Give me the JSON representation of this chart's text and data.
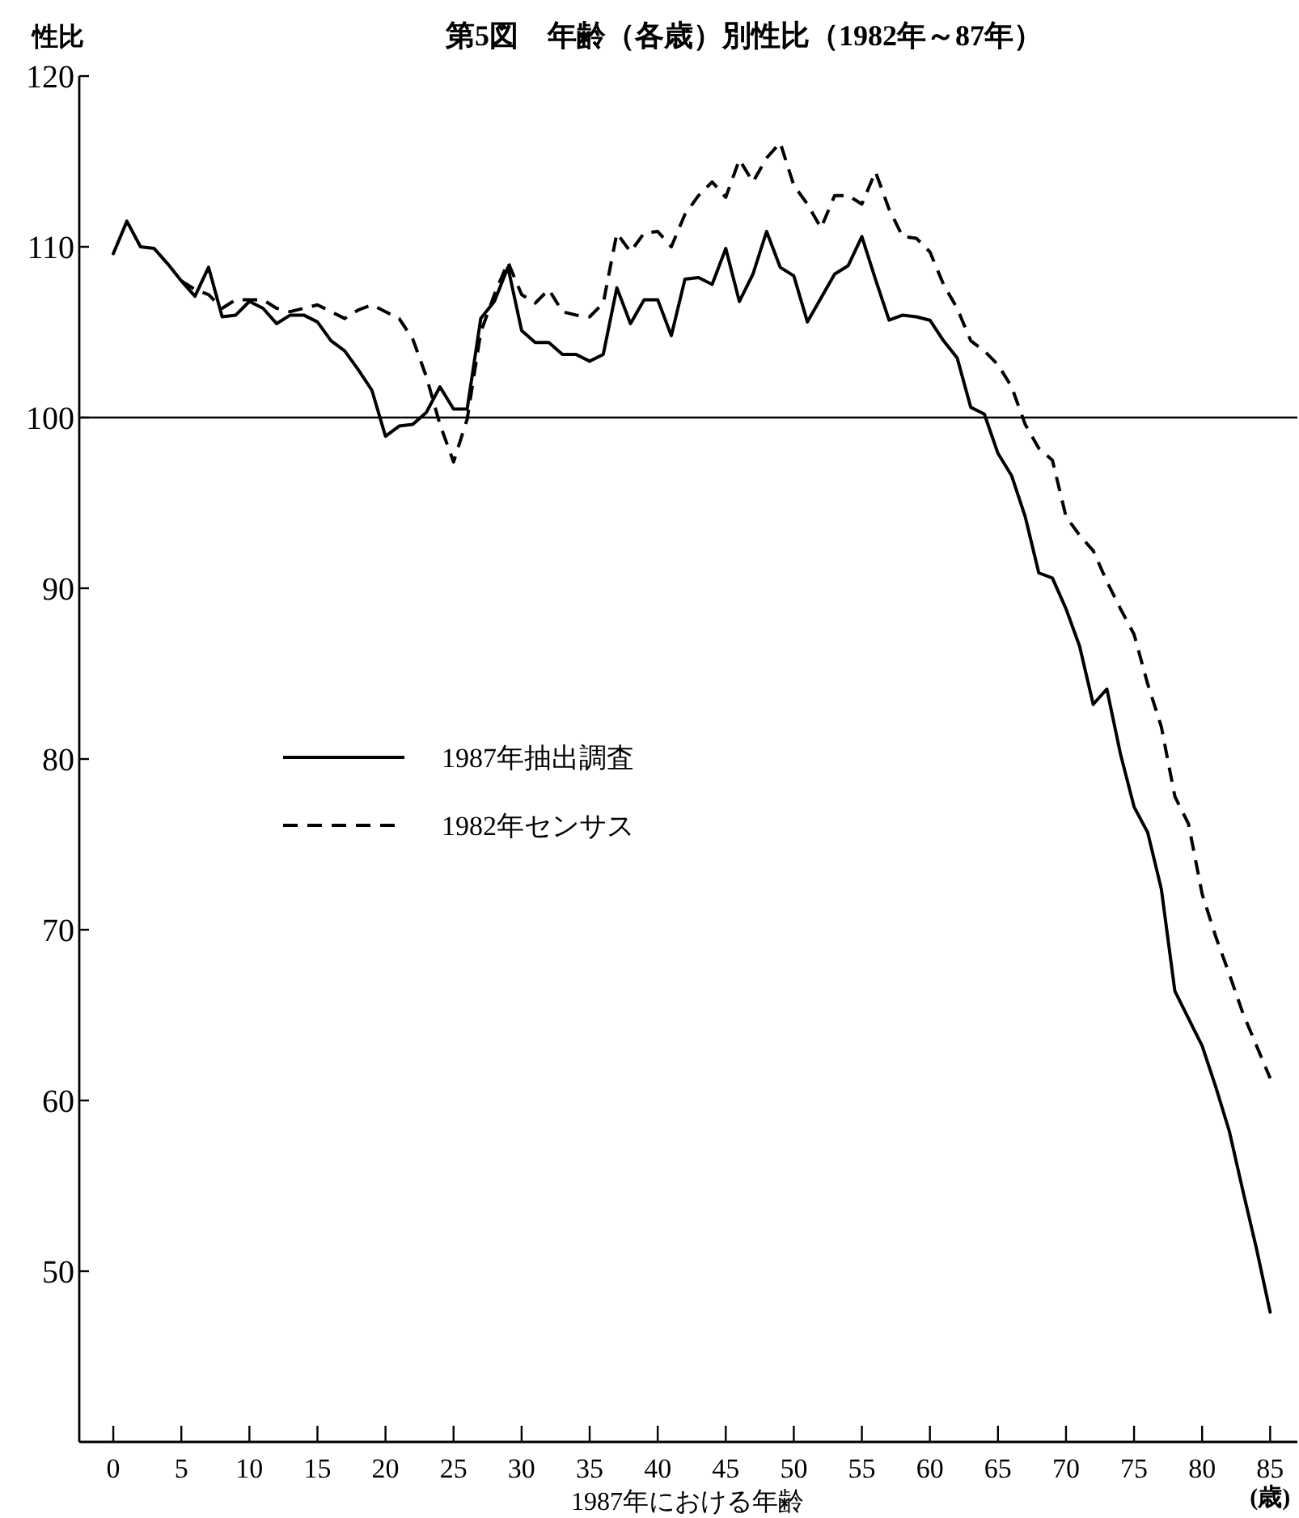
{
  "chart_data": {
    "type": "line",
    "title": "第5図　年齢（各歳）別性比（1982年～87年）",
    "ylabel": "性比",
    "xlabel": "1987年における年齢",
    "annotations": [
      "(歳)"
    ],
    "x": [
      0,
      1,
      2,
      3,
      4,
      5,
      6,
      7,
      8,
      9,
      10,
      11,
      12,
      13,
      14,
      15,
      16,
      17,
      18,
      19,
      20,
      21,
      22,
      23,
      24,
      25,
      26,
      27,
      28,
      29,
      30,
      31,
      32,
      33,
      34,
      35,
      36,
      37,
      38,
      39,
      40,
      41,
      42,
      43,
      44,
      45,
      46,
      47,
      48,
      49,
      50,
      51,
      52,
      53,
      54,
      55,
      56,
      57,
      58,
      59,
      60,
      61,
      62,
      63,
      64,
      65,
      66,
      67,
      68,
      69,
      70,
      71,
      72,
      73,
      74,
      75,
      76,
      77,
      78,
      79,
      80,
      81,
      82,
      83,
      84,
      85
    ],
    "series": [
      {
        "name": "1987年抽出調査",
        "color": "#000000",
        "line_style": "solid",
        "values": [
          109.6,
          111.5,
          110.0,
          109.9,
          109.0,
          108.0,
          107.1,
          108.8,
          105.9,
          106.0,
          106.8,
          106.4,
          105.5,
          106.0,
          106.0,
          105.6,
          104.5,
          103.9,
          102.8,
          101.6,
          98.9,
          99.5,
          99.6,
          100.3,
          101.8,
          100.5,
          100.5,
          105.8,
          106.8,
          108.8,
          105.1,
          104.4,
          104.4,
          103.7,
          103.7,
          103.3,
          103.7,
          107.6,
          105.5,
          106.9,
          106.9,
          104.8,
          108.1,
          108.2,
          107.8,
          109.9,
          106.8,
          108.4,
          110.9,
          108.8,
          108.3,
          105.6,
          107.0,
          108.4,
          108.9,
          110.6,
          108.1,
          105.7,
          106.0,
          105.9,
          105.7,
          104.5,
          103.5,
          100.6,
          100.2,
          97.9,
          96.6,
          94.2,
          90.9,
          90.6,
          88.8,
          86.6,
          83.2,
          84.1,
          80.3,
          77.2,
          75.7,
          72.4,
          66.4,
          64.8,
          63.2,
          60.8,
          58.2,
          54.7,
          51.3,
          47.6
        ]
      },
      {
        "name": "1982年センサス",
        "color": "#000000",
        "line_style": "dashed",
        "values": [
          null,
          null,
          null,
          null,
          null,
          108.0,
          107.5,
          107.2,
          106.4,
          106.9,
          106.9,
          106.9,
          106.4,
          106.2,
          106.4,
          106.6,
          106.2,
          105.8,
          106.3,
          106.6,
          106.2,
          105.8,
          104.6,
          102.4,
          99.6,
          97.4,
          99.9,
          105.0,
          107.2,
          109.1,
          107.2,
          106.7,
          107.5,
          106.2,
          106.0,
          105.9,
          106.7,
          110.8,
          109.7,
          110.8,
          110.9,
          110.0,
          111.9,
          113.0,
          113.8,
          112.9,
          115.1,
          113.8,
          115.2,
          116.1,
          113.6,
          112.5,
          111.1,
          113.0,
          113.0,
          112.5,
          114.4,
          112.2,
          110.6,
          110.5,
          109.7,
          107.8,
          106.4,
          104.5,
          103.9,
          103.1,
          101.8,
          99.6,
          98.2,
          97.5,
          94.2,
          93.1,
          92.2,
          90.4,
          88.8,
          87.3,
          84.4,
          81.9,
          77.8,
          76.2,
          72.1,
          69.6,
          67.4,
          65.1,
          63.2,
          61.3
        ]
      }
    ],
    "xlim": [
      -2.5,
      87
    ],
    "ylim": [
      40,
      120
    ],
    "xticks": [
      0,
      5,
      10,
      15,
      20,
      25,
      30,
      35,
      40,
      45,
      50,
      55,
      60,
      65,
      70,
      75,
      80,
      85
    ],
    "yticks": [
      50,
      60,
      70,
      80,
      90,
      100,
      110,
      120
    ],
    "ref_lines": [
      {
        "axis": "y",
        "value": 100,
        "color": "#000000"
      }
    ],
    "grid": false,
    "legend": "left",
    "marker": "none"
  }
}
